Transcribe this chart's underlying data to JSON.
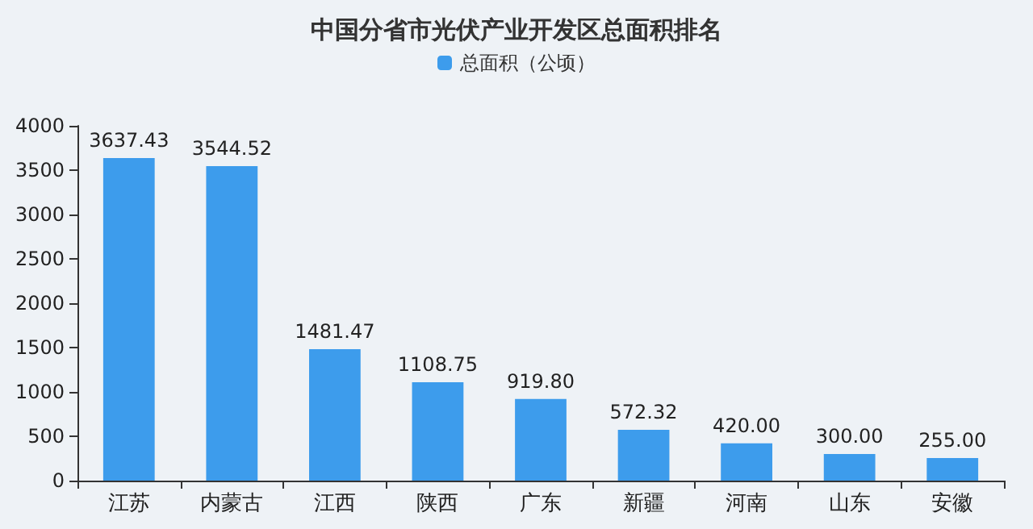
{
  "chart_data": {
    "type": "bar",
    "title": "中国分省市光伏产业开发区总面积排名",
    "categories": [
      "江苏",
      "内蒙古",
      "江西",
      "陕西",
      "广东",
      "新疆",
      "河南",
      "山东",
      "安徽"
    ],
    "series": [
      {
        "name": "总面积（公顷）",
        "color": "#3d9cec",
        "values": [
          3637.43,
          3544.52,
          1481.47,
          1108.75,
          919.8,
          572.32,
          420.0,
          300.0,
          255.0
        ],
        "value_labels": [
          "3637.43",
          "3544.52",
          "1481.47",
          "1108.75",
          "919.80",
          "572.32",
          "420.00",
          "300.00",
          "255.00"
        ]
      }
    ],
    "ylim": [
      0,
      4000
    ],
    "yticks": [
      0,
      500,
      1000,
      1500,
      2000,
      2500,
      3000,
      3500,
      4000
    ],
    "grid": false,
    "legend": "top"
  }
}
